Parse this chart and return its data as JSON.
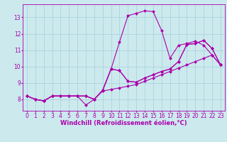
{
  "background_color": "#cce9ee",
  "grid_color": "#aad4db",
  "line_color": "#aa00aa",
  "marker": "D",
  "marker_size": 2.0,
  "linewidth": 0.8,
  "xlabel": "Windchill (Refroidissement éolien,°C)",
  "xlabel_fontsize": 6.0,
  "tick_fontsize": 5.5,
  "xlim": [
    -0.5,
    23.5
  ],
  "ylim": [
    7.3,
    13.8
  ],
  "yticks": [
    8,
    9,
    10,
    11,
    12,
    13
  ],
  "xticks": [
    0,
    1,
    2,
    3,
    4,
    5,
    6,
    7,
    8,
    9,
    10,
    11,
    12,
    13,
    14,
    15,
    16,
    17,
    18,
    19,
    20,
    21,
    22,
    23
  ],
  "curves": [
    [
      8.2,
      8.0,
      7.9,
      8.2,
      8.2,
      8.2,
      8.2,
      8.2,
      8.0,
      8.55,
      9.85,
      11.5,
      13.1,
      13.25,
      13.4,
      13.35,
      12.2,
      10.5,
      11.3,
      11.4,
      11.55,
      11.3,
      10.7,
      10.1
    ],
    [
      8.2,
      8.0,
      7.9,
      8.2,
      8.2,
      8.2,
      8.2,
      8.2,
      8.0,
      8.55,
      9.85,
      9.75,
      9.1,
      9.05,
      9.3,
      9.5,
      9.7,
      9.85,
      10.3,
      11.35,
      11.4,
      11.6,
      11.1,
      10.1
    ],
    [
      8.2,
      8.0,
      7.9,
      8.2,
      8.2,
      8.2,
      8.2,
      7.65,
      8.0,
      8.5,
      8.6,
      8.7,
      8.8,
      8.9,
      9.1,
      9.3,
      9.5,
      9.7,
      9.9,
      10.1,
      10.3,
      10.5,
      10.7,
      10.1
    ],
    [
      8.2,
      8.0,
      7.9,
      8.2,
      8.2,
      8.2,
      8.2,
      8.2,
      8.0,
      8.55,
      9.85,
      9.75,
      9.1,
      9.05,
      9.3,
      9.5,
      9.7,
      9.85,
      10.3,
      11.35,
      11.4,
      11.6,
      11.1,
      10.1
    ]
  ]
}
